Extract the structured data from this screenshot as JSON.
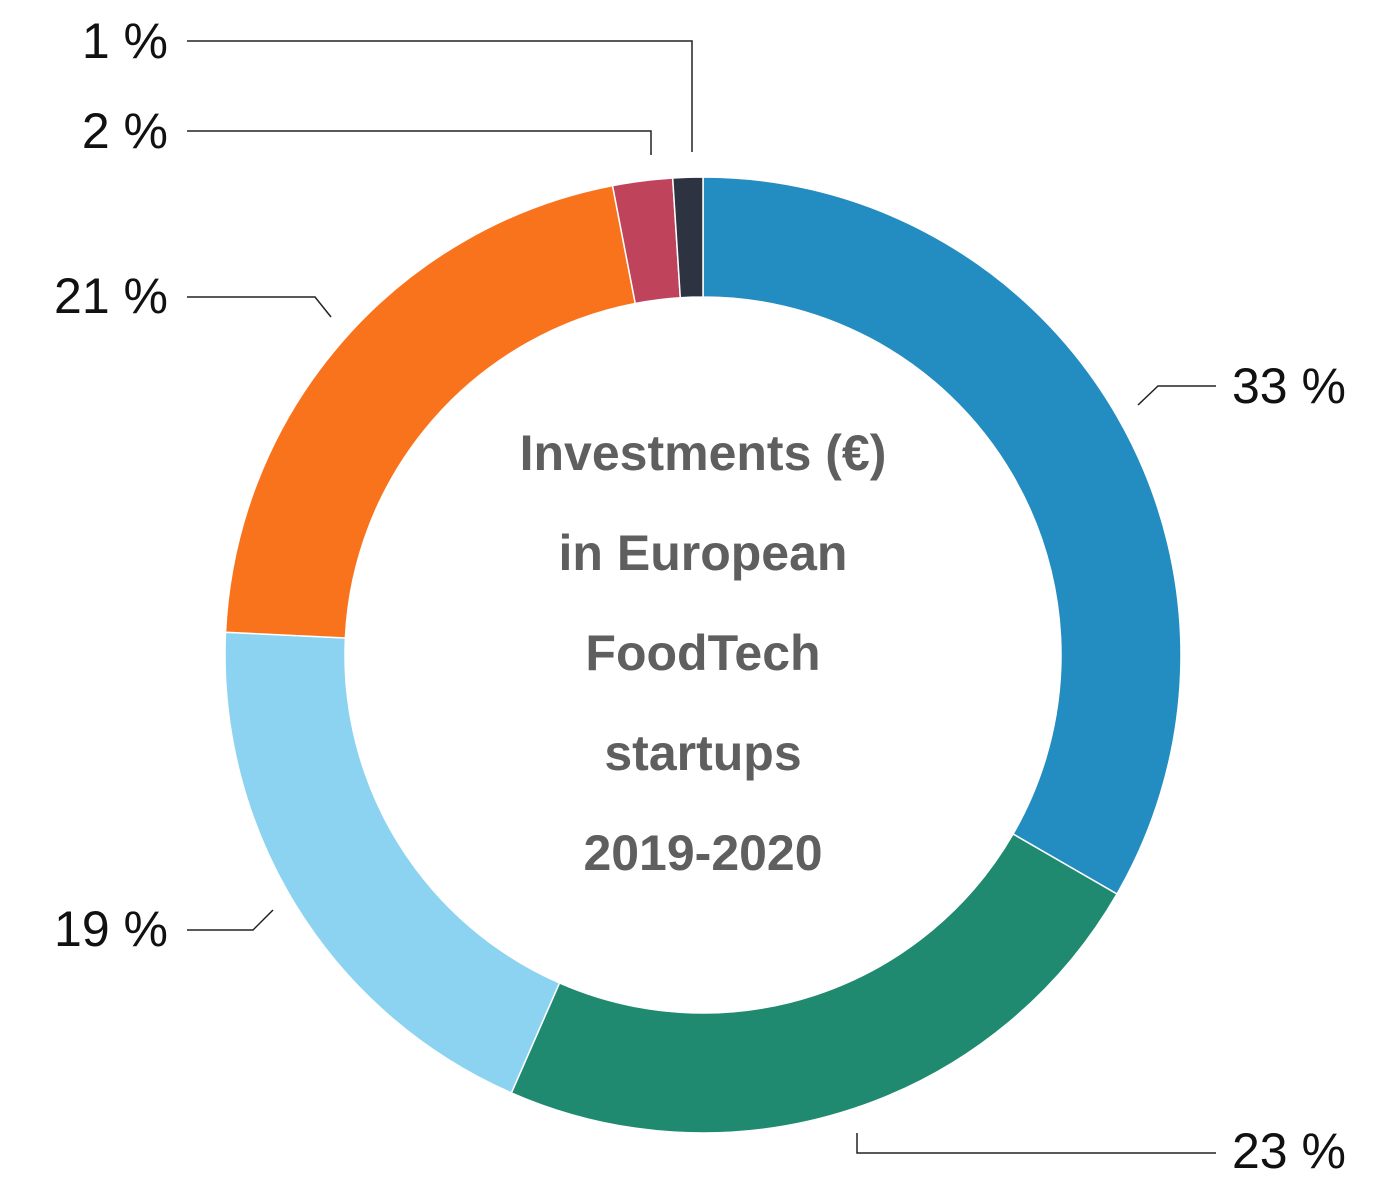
{
  "chart_data": {
    "type": "donut",
    "center_text": [
      "Investments (€)",
      "in European",
      "FoodTech",
      "startups",
      "2019-2020"
    ],
    "values": [
      33,
      23,
      19,
      21,
      2,
      1
    ],
    "value_labels": [
      "33 %",
      "23 %",
      "19 %",
      "21 %",
      "2 %",
      "1 %"
    ],
    "colors": [
      "#238dc1",
      "#1f8a70",
      "#8bd3f1",
      "#f9731c",
      "#bf445b",
      "#2e3342"
    ]
  }
}
